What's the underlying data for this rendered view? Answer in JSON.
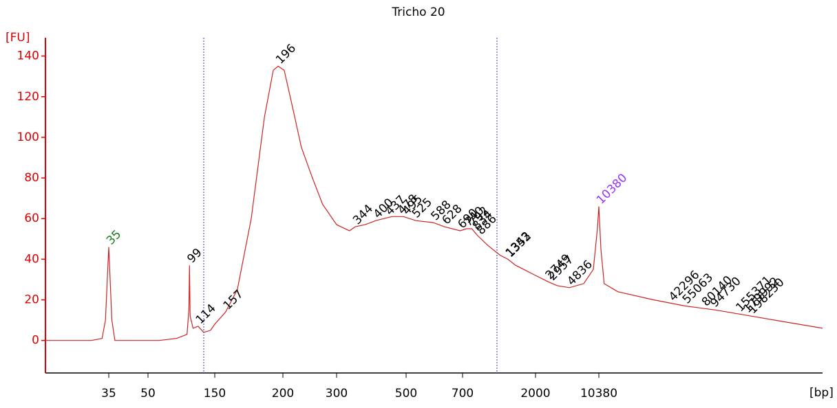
{
  "chart_data": {
    "type": "electropherogram",
    "title": "Tricho 20",
    "y_label": "[FU]",
    "x_label": "[bp]",
    "xlim": [
      20,
      800000
    ],
    "xticks": [
      35,
      50,
      150,
      200,
      300,
      500,
      700,
      2000,
      10380
    ],
    "ylim": [
      -16,
      149
    ],
    "yticks": [
      0,
      20,
      40,
      60,
      80,
      100,
      120,
      140
    ],
    "color": "#cc2222",
    "axis_color": "#dd0000",
    "x": [
      20,
      30,
      33,
      34,
      35,
      36,
      37,
      45,
      60,
      80,
      95,
      98,
      99,
      100,
      105,
      114,
      125,
      140,
      150,
      157,
      165,
      175,
      185,
      192,
      196,
      202,
      215,
      230,
      250,
      270,
      300,
      330,
      344,
      370,
      400,
      450,
      490,
      530,
      588,
      628,
      690,
      740,
      800,
      860,
      1000,
      1200,
      1343,
      1500,
      2000,
      2749,
      3500,
      4836,
      7000,
      9000,
      10000,
      10380,
      10800,
      11500,
      15000,
      30000,
      55063,
      100000,
      200000,
      400000,
      800000
    ],
    "values": [
      0,
      0,
      1,
      10,
      46,
      10,
      0,
      0,
      0,
      1,
      3,
      15,
      37,
      12,
      6,
      7,
      4,
      5,
      8,
      14,
      25,
      60,
      110,
      133,
      135,
      133,
      115,
      95,
      80,
      67,
      57,
      54,
      56,
      57,
      59,
      61,
      61,
      59,
      58,
      56,
      54,
      55,
      55,
      52,
      47,
      42,
      40,
      37,
      32,
      29,
      27,
      26,
      28,
      35,
      55,
      66,
      45,
      28,
      24,
      20,
      17,
      15,
      12,
      9,
      6
    ],
    "lower_marker": 35,
    "lower_marker_color": "#1a7f1a",
    "upper_marker": 10380,
    "upper_marker_color": "#9933ff",
    "peaks": [
      99,
      114,
      157,
      196,
      344,
      400,
      437,
      478,
      495,
      525,
      588,
      628,
      690,
      740,
      792,
      834,
      886,
      1343,
      1352,
      2749,
      2957,
      4836,
      42296,
      55063,
      80140,
      94730,
      155371,
      179992,
      198230
    ]
  }
}
